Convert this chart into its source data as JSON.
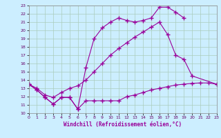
{
  "xlabel": "Windchill (Refroidissement éolien,°C)",
  "bg_color": "#cceeff",
  "grid_color": "#aaccbb",
  "line_color": "#990099",
  "xmin": 0,
  "xmax": 23,
  "ymin": 10,
  "ymax": 23,
  "line1_x": [
    0,
    1,
    2,
    3,
    4,
    5,
    6,
    7,
    8,
    9,
    10,
    11,
    12,
    13,
    14,
    15,
    16,
    17,
    18,
    19,
    20,
    21,
    22,
    23
  ],
  "line1_y": [
    13.5,
    12.8,
    11.9,
    11.1,
    11.9,
    11.9,
    10.5,
    11.5,
    11.5,
    11.5,
    11.5,
    11.5,
    12.0,
    12.2,
    12.5,
    12.8,
    13.0,
    13.2,
    13.4,
    13.5,
    13.6,
    13.65,
    13.65,
    13.5
  ],
  "line2_x": [
    0,
    1,
    2,
    3,
    4,
    5,
    6,
    7,
    8,
    9,
    10,
    11,
    12,
    13,
    14,
    15,
    16,
    17,
    18,
    19
  ],
  "line2_y": [
    13.5,
    12.8,
    11.9,
    11.1,
    11.9,
    11.9,
    10.5,
    15.5,
    19.0,
    20.3,
    21.0,
    21.5,
    21.2,
    21.0,
    21.2,
    21.5,
    22.8,
    22.8,
    22.2,
    21.5
  ],
  "line3_x": [
    0,
    1,
    2,
    3,
    4,
    5,
    6,
    7,
    8,
    9,
    10,
    11,
    12,
    13,
    14,
    15,
    16,
    17,
    18,
    19,
    20,
    23
  ],
  "line3_y": [
    13.5,
    13.0,
    12.2,
    11.9,
    12.5,
    13.0,
    13.3,
    14.0,
    15.0,
    16.0,
    17.0,
    17.8,
    18.5,
    19.2,
    19.8,
    20.4,
    21.0,
    19.5,
    17.0,
    16.5,
    14.5,
    13.5
  ]
}
